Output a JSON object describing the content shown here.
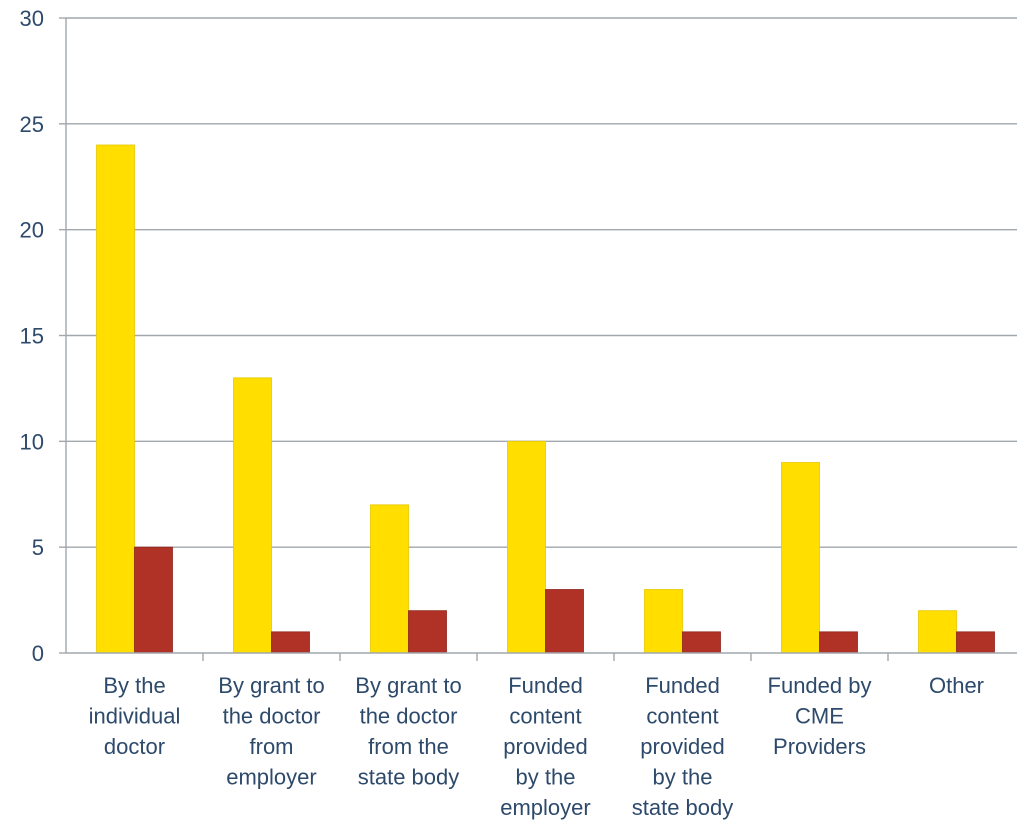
{
  "chart_data": {
    "type": "bar",
    "title": "",
    "xlabel": "",
    "ylabel": "",
    "ylim": [
      0,
      30
    ],
    "yticks": [
      0,
      5,
      10,
      15,
      20,
      25,
      30
    ],
    "grid": true,
    "legend": "none",
    "categories": [
      [
        "By the",
        "individual",
        "doctor"
      ],
      [
        "By grant to",
        "the doctor",
        "from",
        "employer"
      ],
      [
        "By grant to",
        "the doctor",
        "from the",
        "state body"
      ],
      [
        "Funded",
        "content",
        "provided",
        "by the",
        "employer"
      ],
      [
        "Funded",
        "content",
        "provided",
        "by the",
        "state body"
      ],
      [
        "Funded by",
        "CME",
        "Providers"
      ],
      [
        "Other"
      ]
    ],
    "series": [
      {
        "values": [
          24,
          13,
          7,
          10,
          3,
          9,
          2
        ],
        "color": "#ffde00"
      },
      {
        "values": [
          5,
          1,
          2,
          3,
          1,
          1,
          1
        ],
        "color": "#b03226"
      }
    ]
  }
}
